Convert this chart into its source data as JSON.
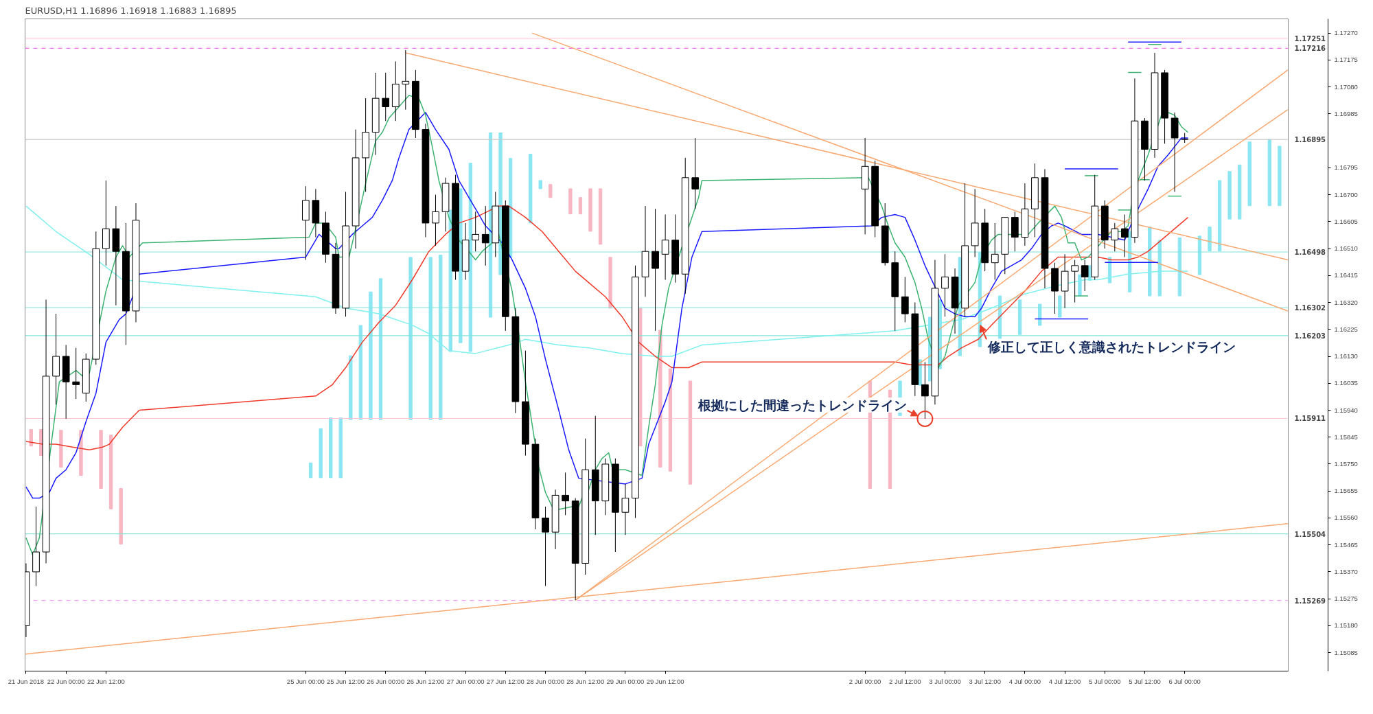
{
  "chart_data": {
    "type": "candlestick",
    "title": "EURUSD,H1  1.16896 1.16918 1.16883 1.16895",
    "x": [
      "2018-06-21T12:00",
      "2018-06-21T15:00",
      "2018-06-21T18:00",
      "2018-06-21T21:00",
      "2018-06-22T00:00",
      "2018-06-22T03:00",
      "2018-06-22T06:00",
      "2018-06-22T09:00",
      "2018-06-22T12:00",
      "2018-06-22T15:00",
      "2018-06-22T18:00",
      "2018-06-22T21:00",
      "2018-06-25T00:00",
      "2018-06-25T03:00",
      "2018-06-25T06:00",
      "2018-06-25T09:00",
      "2018-06-25T12:00",
      "2018-06-25T15:00",
      "2018-06-25T18:00",
      "2018-06-25T21:00",
      "2018-06-26T00:00",
      "2018-06-26T03:00",
      "2018-06-26T06:00",
      "2018-06-26T09:00",
      "2018-06-26T12:00",
      "2018-06-26T15:00",
      "2018-06-26T18:00",
      "2018-06-26T21:00",
      "2018-06-27T00:00",
      "2018-06-27T03:00",
      "2018-06-27T06:00",
      "2018-06-27T09:00",
      "2018-06-27T12:00",
      "2018-06-27T15:00",
      "2018-06-27T18:00",
      "2018-06-27T21:00",
      "2018-06-28T00:00",
      "2018-06-28T03:00",
      "2018-06-28T06:00",
      "2018-06-28T09:00",
      "2018-06-28T12:00",
      "2018-06-28T15:00",
      "2018-06-28T18:00",
      "2018-06-28T21:00",
      "2018-06-29T00:00",
      "2018-06-29T03:00",
      "2018-06-29T06:00",
      "2018-06-29T09:00",
      "2018-06-29T12:00",
      "2018-06-29T15:00",
      "2018-06-29T18:00",
      "2018-06-29T21:00",
      "2018-07-02T00:00",
      "2018-07-02T03:00",
      "2018-07-02T06:00",
      "2018-07-02T09:00",
      "2018-07-02T12:00",
      "2018-07-02T15:00",
      "2018-07-02T18:00",
      "2018-07-02T21:00",
      "2018-07-03T00:00",
      "2018-07-03T03:00",
      "2018-07-03T06:00",
      "2018-07-03T09:00",
      "2018-07-03T12:00",
      "2018-07-03T15:00",
      "2018-07-03T18:00",
      "2018-07-03T21:00",
      "2018-07-04T00:00",
      "2018-07-04T03:00",
      "2018-07-04T06:00",
      "2018-07-04T09:00",
      "2018-07-04T12:00",
      "2018-07-04T15:00",
      "2018-07-04T18:00",
      "2018-07-04T21:00",
      "2018-07-05T00:00",
      "2018-07-05T03:00",
      "2018-07-05T06:00",
      "2018-07-05T09:00",
      "2018-07-05T12:00",
      "2018-07-05T15:00",
      "2018-07-05T18:00",
      "2018-07-05T21:00",
      "2018-07-06T00:00"
    ],
    "ohlc": [
      [
        1.1518,
        1.154,
        1.1514,
        1.1537
      ],
      [
        1.1537,
        1.156,
        1.1532,
        1.1544
      ],
      [
        1.1544,
        1.1633,
        1.154,
        1.1606
      ],
      [
        1.1606,
        1.1628,
        1.1596,
        1.1613
      ],
      [
        1.1613,
        1.1617,
        1.1591,
        1.1604
      ],
      [
        1.1604,
        1.1616,
        1.1598,
        1.1603
      ],
      [
        1.16,
        1.1614,
        1.1597,
        1.1612
      ],
      [
        1.1612,
        1.1657,
        1.161,
        1.1651
      ],
      [
        1.1651,
        1.1675,
        1.1645,
        1.1658
      ],
      [
        1.1658,
        1.1666,
        1.1631,
        1.165
      ],
      [
        1.165,
        1.166,
        1.1617,
        1.1629
      ],
      [
        1.1629,
        1.1667,
        1.1625,
        1.1661
      ],
      [
        1.1661,
        1.1673,
        1.1647,
        1.1668
      ],
      [
        1.1668,
        1.1672,
        1.1655,
        1.166
      ],
      [
        1.166,
        1.1664,
        1.1646,
        1.1649
      ],
      [
        1.1649,
        1.1653,
        1.1628,
        1.163
      ],
      [
        1.163,
        1.1671,
        1.1627,
        1.1659
      ],
      [
        1.1659,
        1.1693,
        1.1651,
        1.1683
      ],
      [
        1.1683,
        1.1704,
        1.1671,
        1.1692
      ],
      [
        1.1692,
        1.1713,
        1.1684,
        1.1704
      ],
      [
        1.1704,
        1.1713,
        1.1696,
        1.1701
      ],
      [
        1.1701,
        1.1717,
        1.1696,
        1.1709
      ],
      [
        1.1709,
        1.1721,
        1.17,
        1.171
      ],
      [
        1.171,
        1.1714,
        1.169,
        1.1693
      ],
      [
        1.1693,
        1.1695,
        1.1655,
        1.166
      ],
      [
        1.166,
        1.167,
        1.1652,
        1.1664
      ],
      [
        1.1664,
        1.1676,
        1.1657,
        1.1674
      ],
      [
        1.1674,
        1.1677,
        1.164,
        1.1643
      ],
      [
        1.1643,
        1.166,
        1.164,
        1.1654
      ],
      [
        1.1654,
        1.1664,
        1.165,
        1.1656
      ],
      [
        1.1656,
        1.1666,
        1.1645,
        1.1653
      ],
      [
        1.1653,
        1.1671,
        1.1648,
        1.1666
      ],
      [
        1.1666,
        1.1668,
        1.1622,
        1.1627
      ],
      [
        1.1627,
        1.163,
        1.1593,
        1.1597
      ],
      [
        1.1597,
        1.1615,
        1.1578,
        1.1582
      ],
      [
        1.1582,
        1.1584,
        1.1552,
        1.1556
      ],
      [
        1.1556,
        1.156,
        1.1532,
        1.1551
      ],
      [
        1.1551,
        1.1566,
        1.1545,
        1.1564
      ],
      [
        1.1564,
        1.1572,
        1.1557,
        1.1562
      ],
      [
        1.1562,
        1.1563,
        1.1527,
        1.154
      ],
      [
        1.154,
        1.1584,
        1.1536,
        1.1573
      ],
      [
        1.1573,
        1.1592,
        1.155,
        1.1562
      ],
      [
        1.1562,
        1.1577,
        1.1557,
        1.1575
      ],
      [
        1.1575,
        1.1577,
        1.1544,
        1.1558
      ],
      [
        1.1558,
        1.1568,
        1.155,
        1.1563
      ],
      [
        1.1563,
        1.1645,
        1.1556,
        1.1641
      ],
      [
        1.1641,
        1.1666,
        1.1634,
        1.165
      ],
      [
        1.165,
        1.1665,
        1.1622,
        1.1644
      ],
      [
        1.1649,
        1.1663,
        1.164,
        1.1654
      ],
      [
        1.1654,
        1.1663,
        1.1639,
        1.1642
      ],
      [
        1.1642,
        1.1683,
        1.1635,
        1.1676
      ],
      [
        1.1676,
        1.169,
        1.1665,
        1.1672
      ],
      [
        1.1672,
        1.169,
        1.1656,
        1.168
      ],
      [
        1.168,
        1.1682,
        1.1655,
        1.1659
      ],
      [
        1.1659,
        1.1667,
        1.1645,
        1.1646
      ],
      [
        1.1646,
        1.165,
        1.1622,
        1.1634
      ],
      [
        1.1634,
        1.1641,
        1.1625,
        1.1628
      ],
      [
        1.1628,
        1.1632,
        1.1599,
        1.1603
      ],
      [
        1.1603,
        1.1611,
        1.1591,
        1.1599
      ],
      [
        1.1599,
        1.1647,
        1.1596,
        1.1637
      ],
      [
        1.1637,
        1.1649,
        1.1627,
        1.1641
      ],
      [
        1.1641,
        1.1644,
        1.1621,
        1.163
      ],
      [
        1.163,
        1.1674,
        1.1627,
        1.1652
      ],
      [
        1.1652,
        1.1672,
        1.1648,
        1.166
      ],
      [
        1.166,
        1.1665,
        1.1643,
        1.1646
      ],
      [
        1.1646,
        1.166,
        1.164,
        1.1649
      ],
      [
        1.1649,
        1.1662,
        1.1642,
        1.1662
      ],
      [
        1.1662,
        1.1664,
        1.165,
        1.1655
      ],
      [
        1.1655,
        1.1674,
        1.1652,
        1.1665
      ],
      [
        1.1665,
        1.1681,
        1.1655,
        1.1676
      ],
      [
        1.1676,
        1.1679,
        1.1637,
        1.1644
      ],
      [
        1.1644,
        1.1646,
        1.1628,
        1.1636
      ],
      [
        1.1636,
        1.1649,
        1.163,
        1.1643
      ],
      [
        1.1643,
        1.1647,
        1.1632,
        1.1645
      ],
      [
        1.1645,
        1.1647,
        1.1636,
        1.1641
      ],
      [
        1.1641,
        1.1677,
        1.164,
        1.1666
      ],
      [
        1.1666,
        1.1668,
        1.1651,
        1.1654
      ],
      [
        1.1654,
        1.166,
        1.165,
        1.1658
      ],
      [
        1.1658,
        1.1663,
        1.1648,
        1.1655
      ],
      [
        1.1655,
        1.1711,
        1.1653,
        1.1696
      ],
      [
        1.1696,
        1.1697,
        1.1675,
        1.1686
      ],
      [
        1.1686,
        1.172,
        1.1683,
        1.1713
      ],
      [
        1.1713,
        1.1714,
        1.1688,
        1.1697
      ],
      [
        1.1697,
        1.1699,
        1.1671,
        1.169
      ],
      [
        1.16896,
        1.16918,
        1.16883,
        1.16895
      ]
    ],
    "series": [
      {
        "type": "bar",
        "x": [
          "2018-06-21T13:30",
          "2018-06-21T16:30",
          "2018-06-21T22:30",
          "2018-06-22T04:30",
          "2018-06-22T10:30",
          "2018-06-22T13:30",
          "2018-06-22T16:30",
          "2018-06-25T01:30",
          "2018-06-25T04:30",
          "2018-06-25T07:30",
          "2018-06-25T10:30",
          "2018-06-25T13:30",
          "2018-06-25T16:30",
          "2018-06-25T19:30",
          "2018-06-25T22:30",
          "2018-06-26T07:30",
          "2018-06-26T13:30",
          "2018-06-26T16:30",
          "2018-06-26T19:30",
          "2018-06-26T22:30",
          "2018-06-27T01:30",
          "2018-06-27T07:30",
          "2018-06-27T10:30",
          "2018-06-27T13:30",
          "2018-06-27T19:30",
          "2018-06-27T22:30",
          "2018-06-28T01:30",
          "2018-06-28T07:30",
          "2018-06-28T10:30",
          "2018-06-28T13:30",
          "2018-06-28T16:30",
          "2018-06-28T19:30",
          "2018-06-29T04:30",
          "2018-06-29T10:30",
          "2018-06-29T13:30",
          "2018-06-29T19:30",
          "2018-07-02T01:30",
          "2018-07-02T07:30",
          "2018-07-02T10:30",
          "2018-07-02T16:30",
          "2018-07-02T19:30",
          "2018-07-02T22:30",
          "2018-07-03T04:30",
          "2018-07-03T10:30",
          "2018-07-03T16:30",
          "2018-07-03T22:30",
          "2018-07-04T04:30",
          "2018-07-04T10:30",
          "2018-07-04T16:30",
          "2018-07-04T19:30",
          "2018-07-05T01:30",
          "2018-07-05T07:30",
          "2018-07-05T13:30",
          "2018-07-05T16:30",
          "2018-07-05T22:30",
          "2018-07-06T04:30",
          "2018-07-06T07:30",
          "2018-07-06T10:30",
          "2018-07-06T13:30",
          "2018-07-06T16:30",
          "2018-07-06T19:30",
          "2018-07-07T01:30",
          "2018-07-07T04:30"
        ],
        "base": [
          1.15814,
          1.1578,
          1.15739,
          1.1571,
          1.15664,
          1.15592,
          1.15468,
          1.15702,
          1.15702,
          1.15702,
          1.15702,
          1.15907,
          1.15907,
          1.15907,
          1.15907,
          1.15907,
          1.15907,
          1.15907,
          1.16147,
          1.16178,
          1.16147,
          1.16268,
          1.16418,
          1.16479,
          1.166,
          1.16721,
          1.1669,
          1.16632,
          1.16632,
          1.16571,
          1.16525,
          1.163,
          1.15814,
          1.15739,
          1.15725,
          1.15679,
          1.15664,
          1.15664,
          1.15921,
          1.16028,
          1.16043,
          1.16086,
          1.16132,
          1.16164,
          1.16193,
          1.16207,
          1.16239,
          1.16268,
          1.16343,
          1.16398,
          1.16389,
          1.16357,
          1.16343,
          1.16343,
          1.16343,
          1.16418,
          1.16502,
          1.16502,
          1.16614,
          1.16614,
          1.16661,
          1.16661,
          1.16661
        ],
        "values": [
          0.00058,
          0.00092,
          0.0013,
          0.00159,
          0.00205,
          0.0026,
          0.00196,
          0.00052,
          0.00173,
          0.00211,
          0.00211,
          0.00225,
          0.00332,
          0.0045,
          0.00497,
          0.00572,
          0.00572,
          0.0058,
          0.00499,
          0.00543,
          0.00664,
          0.0065,
          0.005,
          0.00349,
          0.00243,
          0.00029,
          0.00046,
          0.00089,
          0.00058,
          0.0015,
          0.00196,
          0.00179,
          0.00486,
          0.00483,
          0.00361,
          0.00364,
          0.00379,
          0.00347,
          0.00122,
          0.0009,
          0.00225,
          0.00243,
          0.00347,
          0.00332,
          0.0015,
          0.00122,
          0.00075,
          0.00075,
          0.00075,
          0.00052,
          0.0009,
          0.00214,
          0.00243,
          0.00196,
          0.00205,
          0.00136,
          0.00084,
          0.00248,
          0.00168,
          0.00191,
          0.00225,
          0.00234,
          0.0021
        ],
        "colors": [
          "#f7b6c2",
          "#f7b6c2",
          "#f7b6c2",
          "#f7b6c2",
          "#f7b6c2",
          "#f7b6c2",
          "#f7b6c2",
          "#8be6f2",
          "#8be6f2",
          "#8be6f2",
          "#8be6f2",
          "#8be6f2",
          "#8be6f2",
          "#8be6f2",
          "#8be6f2",
          "#8be6f2",
          "#8be6f2",
          "#8be6f2",
          "#8be6f2",
          "#8be6f2",
          "#8be6f2",
          "#8be6f2",
          "#8be6f2",
          "#8be6f2",
          "#8be6f2",
          "#8be6f2",
          "#f7b6c2",
          "#f7b6c2",
          "#f7b6c2",
          "#f7b6c2",
          "#f7b6c2",
          "#f7b6c2",
          "#f7b6c2",
          "#f7b6c2",
          "#f7b6c2",
          "#f7b6c2",
          "#f7b6c2",
          "#f7b6c2",
          "#8be6f2",
          "#8be6f2",
          "#8be6f2",
          "#8be6f2",
          "#8be6f2",
          "#8be6f2",
          "#8be6f2",
          "#8be6f2",
          "#8be6f2",
          "#8be6f2",
          "#8be6f2",
          "#8be6f2",
          "#8be6f2",
          "#8be6f2",
          "#8be6f2",
          "#8be6f2",
          "#8be6f2",
          "#8be6f2",
          "#8be6f2",
          "#8be6f2",
          "#8be6f2",
          "#8be6f2",
          "#8be6f2",
          "#8be6f2",
          "#8be6f2"
        ]
      },
      {
        "type": "line",
        "color": "#7ff0f0",
        "x": [
          "2018-06-21T12:00",
          "2018-06-21T21:00",
          "2018-06-22T07:00",
          "2018-06-22T17:00",
          "2018-06-25T03:00",
          "2018-06-25T12:00",
          "2018-06-25T22:00",
          "2018-06-26T08:00",
          "2018-06-26T13:00",
          "2018-06-26T19:00",
          "2018-06-27T03:00",
          "2018-06-27T13:00",
          "2018-06-27T18:00",
          "2018-06-28T04:00",
          "2018-06-28T13:00",
          "2018-06-28T23:00",
          "2018-06-29T09:00",
          "2018-06-29T14:00",
          "2018-06-29T23:00",
          "2018-07-02T09:00",
          "2018-07-02T19:00",
          "2018-07-03T05:00",
          "2018-07-03T14:00",
          "2018-07-04T00:00",
          "2018-07-04T10:00",
          "2018-07-04T18:00",
          "2018-07-04T22:00",
          "2018-07-05T07:00",
          "2018-07-05T17:00",
          "2018-07-06T01:00"
        ],
        "values": [
          1.1666,
          1.1657,
          1.1649,
          1.164,
          1.1634,
          1.163,
          1.1628,
          1.1624,
          1.1621,
          1.1615,
          1.1614,
          1.1617,
          1.1619,
          1.1617,
          1.1616,
          1.1614,
          1.1613,
          1.1613,
          1.1617,
          1.1622,
          1.1624,
          1.1626,
          1.163,
          1.1635,
          1.1638,
          1.164,
          1.164,
          1.1642,
          1.1643,
          1.1643
        ]
      },
      {
        "type": "line",
        "color": "#f03a2a",
        "x": [
          "2018-06-21T12:00",
          "2018-06-21T17:00",
          "2018-06-21T21:00",
          "2018-06-22T02:00",
          "2018-06-22T07:00",
          "2018-06-22T11:00",
          "2018-06-22T13:00",
          "2018-06-22T17:00",
          "2018-06-22T22:00",
          "2018-06-25T03:00",
          "2018-06-25T08:00",
          "2018-06-25T12:00",
          "2018-06-25T17:00",
          "2018-06-25T22:00",
          "2018-06-26T03:00",
          "2018-06-26T08:00",
          "2018-06-26T13:00",
          "2018-06-26T18:00",
          "2018-06-26T22:00",
          "2018-06-27T03:00",
          "2018-06-27T10:00",
          "2018-06-27T13:00",
          "2018-06-27T18:00",
          "2018-06-27T23:00",
          "2018-06-28T04:00",
          "2018-06-28T09:00",
          "2018-06-28T13:00",
          "2018-06-28T18:00",
          "2018-06-28T23:00",
          "2018-06-29T04:00",
          "2018-06-29T09:00",
          "2018-06-29T14:00",
          "2018-06-29T19:00",
          "2018-06-29T23:00",
          "2018-07-02T04:00",
          "2018-07-02T09:00",
          "2018-07-02T14:00",
          "2018-07-02T19:00",
          "2018-07-02T22:00",
          "2018-07-03T01:00",
          "2018-07-03T05:00",
          "2018-07-03T10:00",
          "2018-07-03T14:00",
          "2018-07-03T19:00",
          "2018-07-04T00:00",
          "2018-07-04T05:00",
          "2018-07-04T10:00",
          "2018-07-04T14:00",
          "2018-07-04T17:00",
          "2018-07-04T22:00",
          "2018-07-05T02:00",
          "2018-07-05T07:00",
          "2018-07-05T10:00",
          "2018-07-05T13:00",
          "2018-07-05T17:00",
          "2018-07-05T21:00",
          "2018-07-06T01:00"
        ],
        "values": [
          1.1583,
          1.1582,
          1.1582,
          1.1581,
          1.158,
          1.1581,
          1.1582,
          1.1588,
          1.1594,
          1.1599,
          1.1603,
          1.1609,
          1.1618,
          1.1625,
          1.1631,
          1.164,
          1.165,
          1.1656,
          1.166,
          1.1662,
          1.1666,
          1.1666,
          1.1662,
          1.1657,
          1.165,
          1.1643,
          1.1639,
          1.1634,
          1.1627,
          1.1618,
          1.1613,
          1.1609,
          1.1609,
          1.1611,
          1.1611,
          1.1611,
          1.161,
          1.161,
          1.161,
          1.1613,
          1.1616,
          1.1619,
          1.1624,
          1.163,
          1.1636,
          1.1643,
          1.1648,
          1.1648,
          1.1648,
          1.1648,
          1.1647,
          1.1647,
          1.1648,
          1.165,
          1.1654,
          1.1658,
          1.1662
        ]
      },
      {
        "type": "line",
        "color": "#1a1aff",
        "x": [
          "2018-06-21T12:00",
          "2018-06-21T14:00",
          "2018-06-21T16:00",
          "2018-06-21T19:00",
          "2018-06-21T21:00",
          "2018-06-22T00:00",
          "2018-06-22T03:00",
          "2018-06-22T06:00",
          "2018-06-22T09:00",
          "2018-06-22T12:00",
          "2018-06-22T16:00",
          "2018-06-22T18:00",
          "2018-06-22T20:00",
          "2018-06-22T22:00",
          "2018-06-25T00:00",
          "2018-06-25T02:00",
          "2018-06-25T04:00",
          "2018-06-25T09:00",
          "2018-06-25T10:00",
          "2018-06-25T14:00",
          "2018-06-25T17:00",
          "2018-06-25T20:00",
          "2018-06-25T23:00",
          "2018-06-26T02:00",
          "2018-06-26T04:00",
          "2018-06-26T07:00",
          "2018-06-26T12:00",
          "2018-06-26T15:00",
          "2018-06-26T19:00",
          "2018-06-26T22:00",
          "2018-06-27T03:00",
          "2018-06-27T06:00",
          "2018-06-27T11:00",
          "2018-06-27T14:00",
          "2018-06-27T18:00",
          "2018-06-27T21:00",
          "2018-06-28T00:00",
          "2018-06-28T04:00",
          "2018-06-28T07:00",
          "2018-06-28T10:00",
          "2018-06-29T00:00",
          "2018-06-29T05:00",
          "2018-06-29T07:00",
          "2018-06-29T09:00",
          "2018-06-29T12:00",
          "2018-06-29T14:00",
          "2018-06-29T17:00",
          "2018-06-29T20:00",
          "2018-06-29T23:00",
          "2018-07-02T02:00",
          "2018-07-02T05:00",
          "2018-07-02T09:00",
          "2018-07-02T12:00",
          "2018-07-02T15:00",
          "2018-07-02T18:00",
          "2018-07-03T00:00",
          "2018-07-03T03:00",
          "2018-07-03T06:00",
          "2018-07-03T09:00",
          "2018-07-03T11:00",
          "2018-07-03T14:00",
          "2018-07-03T17:00",
          "2018-07-03T20:00",
          "2018-07-03T23:00",
          "2018-07-04T02:00",
          "2018-07-04T05:00",
          "2018-07-04T08:00",
          "2018-07-04T10:00",
          "2018-07-04T12:00",
          "2018-07-04T17:00",
          "2018-07-04T22:00",
          "2018-07-05T02:00",
          "2018-07-05T06:00",
          "2018-07-05T07:00",
          "2018-07-05T10:00",
          "2018-07-05T13:00",
          "2018-07-05T16:00",
          "2018-07-05T19:00",
          "2018-07-05T21:00",
          "2018-07-05T23:00",
          "2018-07-06T01:00"
        ],
        "values": [
          1.1567,
          1.1563,
          1.1563,
          1.1565,
          1.157,
          1.1573,
          1.1579,
          1.159,
          1.16,
          1.1618,
          1.1626,
          1.1628,
          1.1634,
          1.1642,
          1.1648,
          1.1652,
          1.1656,
          1.1651,
          1.1651,
          1.1656,
          1.1659,
          1.1662,
          1.1668,
          1.1675,
          1.1683,
          1.1693,
          1.1699,
          1.1693,
          1.1686,
          1.1675,
          1.1665,
          1.1659,
          1.1653,
          1.1647,
          1.1637,
          1.1627,
          1.1612,
          1.1594,
          1.158,
          1.157,
          1.1568,
          1.157,
          1.1582,
          1.1588,
          1.1597,
          1.1604,
          1.163,
          1.1648,
          1.1657,
          1.1659,
          1.1662,
          1.1663,
          1.1662,
          1.1654,
          1.1645,
          1.163,
          1.1628,
          1.1627,
          1.1627,
          1.163,
          1.1637,
          1.1643,
          1.1645,
          1.1647,
          1.1651,
          1.1656,
          1.1659,
          1.166,
          1.1659,
          1.1656,
          1.1656,
          1.1655,
          1.1654,
          1.1657,
          1.1665,
          1.1672,
          1.168,
          1.1684,
          1.1687,
          1.169,
          1.169
        ]
      },
      {
        "type": "line",
        "color": "#3cb371",
        "x": [
          "2018-06-21T12:00",
          "2018-06-21T14:00",
          "2018-06-21T16:00",
          "2018-06-21T20:00",
          "2018-06-21T22:00",
          "2018-06-22T03:00",
          "2018-06-22T05:00",
          "2018-06-22T07:00",
          "2018-06-22T12:00",
          "2018-06-22T15:00",
          "2018-06-22T17:00",
          "2018-06-22T19:00",
          "2018-06-22T23:00",
          "2018-06-25T01:00",
          "2018-06-25T03:00",
          "2018-06-25T05:00",
          "2018-06-25T07:00",
          "2018-06-25T09:00",
          "2018-06-25T10:00",
          "2018-06-25T13:00",
          "2018-06-25T15:00",
          "2018-06-25T18:00",
          "2018-06-25T21:00",
          "2018-06-25T23:00",
          "2018-06-26T01:00",
          "2018-06-26T04:00",
          "2018-06-26T07:00",
          "2018-06-26T10:00",
          "2018-06-26T12:00",
          "2018-06-26T14:00",
          "2018-06-26T16:00",
          "2018-06-26T19:00",
          "2018-06-26T22:00",
          "2018-06-27T01:00",
          "2018-06-27T03:00",
          "2018-06-27T05:00",
          "2018-06-27T08:00",
          "2018-06-27T10:00",
          "2018-06-27T14:00",
          "2018-06-27T16:00",
          "2018-06-27T18:00",
          "2018-06-27T20:00",
          "2018-06-27T22:00",
          "2018-06-28T00:00",
          "2018-06-28T02:00",
          "2018-06-28T04:00",
          "2018-06-28T08:00",
          "2018-06-28T10:00",
          "2018-06-28T11:00",
          "2018-06-28T13:00",
          "2018-06-28T15:00",
          "2018-06-28T17:00",
          "2018-06-28T19:00",
          "2018-06-28T20:00",
          "2018-06-28T22:00",
          "2018-06-29T00:00",
          "2018-06-29T05:00",
          "2018-06-29T07:00",
          "2018-06-29T09:00",
          "2018-06-29T11:00",
          "2018-06-29T13:00",
          "2018-06-29T16:00",
          "2018-06-29T22:00",
          "2018-06-29T23:00",
          "2018-07-02T01:00",
          "2018-07-02T05:00",
          "2018-07-02T07:00",
          "2018-07-02T09:00",
          "2018-07-02T12:00",
          "2018-07-02T15:00",
          "2018-07-02T17:00",
          "2018-07-02T19:00",
          "2018-07-02T22:00",
          "2018-07-03T00:00",
          "2018-07-03T02:00",
          "2018-07-03T04:00",
          "2018-07-03T09:00",
          "2018-07-03T11:00",
          "2018-07-03T14:00",
          "2018-07-03T16:00",
          "2018-07-03T19:00",
          "2018-07-03T22:00",
          "2018-07-04T01:00",
          "2018-07-04T04:00",
          "2018-07-04T09:00",
          "2018-07-04T11:00",
          "2018-07-04T13:00",
          "2018-07-04T15:00",
          "2018-07-04T17:00",
          "2018-07-04T19:00",
          "2018-07-05T02:00",
          "2018-07-05T05:00",
          "2018-07-05T07:00",
          "2018-07-05T08:00",
          "2018-07-05T10:00",
          "2018-07-05T13:00",
          "2018-07-05T17:00",
          "2018-07-05T19:00",
          "2018-07-05T21:00",
          "2018-07-05T23:00",
          "2018-07-06T01:00"
        ],
        "values": [
          1.1549,
          1.1543,
          1.1549,
          1.1586,
          1.1604,
          1.1608,
          1.1606,
          1.1607,
          1.1636,
          1.1648,
          1.1652,
          1.1648,
          1.1653,
          1.1655,
          1.166,
          1.166,
          1.1658,
          1.1655,
          1.1648,
          1.1648,
          1.1658,
          1.1674,
          1.1689,
          1.1692,
          1.1697,
          1.1701,
          1.1705,
          1.1704,
          1.1698,
          1.1687,
          1.1675,
          1.1662,
          1.1654,
          1.165,
          1.1647,
          1.165,
          1.1653,
          1.1656,
          1.1636,
          1.1621,
          1.1604,
          1.1589,
          1.1574,
          1.1565,
          1.156,
          1.1559,
          1.156,
          1.156,
          1.1563,
          1.1566,
          1.1573,
          1.1577,
          1.1579,
          1.1574,
          1.1573,
          1.1573,
          1.1571,
          1.1588,
          1.1603,
          1.1624,
          1.1637,
          1.1648,
          1.1669,
          1.1675,
          1.1676,
          1.1666,
          1.1659,
          1.1653,
          1.1648,
          1.1639,
          1.163,
          1.1619,
          1.1609,
          1.1613,
          1.1622,
          1.1631,
          1.1639,
          1.1648,
          1.1654,
          1.1656,
          1.1656,
          1.1656,
          1.1656,
          1.166,
          1.1666,
          1.1662,
          1.1653,
          1.1653,
          1.1647,
          1.1648,
          1.1657,
          1.1657,
          1.1659,
          1.1666,
          1.1675,
          1.1684,
          1.1698,
          1.1699,
          1.1698,
          1.1694,
          1.1692
        ]
      },
      {
        "type": "line",
        "color": "#f9a870",
        "x": [
          "2018-06-26T06:00",
          "2018-07-07T07:00"
        ],
        "values": [
          1.172,
          1.1647
        ]
      },
      {
        "type": "line",
        "color": "#f9a870",
        "x": [
          "2018-06-27T20:00",
          "2018-07-07T07:00"
        ],
        "values": [
          1.1727,
          1.1629
        ]
      },
      {
        "type": "line",
        "color": "#f9a870",
        "x": [
          "2018-06-28T09:00",
          "2018-07-07T07:00"
        ],
        "values": [
          1.1527,
          1.1714
        ]
      },
      {
        "type": "line",
        "color": "#f9a870",
        "x": [
          "2018-06-28T09:00",
          "2018-07-07T07:00"
        ],
        "values": [
          1.1527,
          1.17
        ]
      },
      {
        "type": "line",
        "color": "#f9a870",
        "x": [
          "2018-06-21T11:42",
          "2018-07-07T07:00"
        ],
        "values": [
          1.1508,
          1.1554
        ]
      },
      {
        "type": "line",
        "color": "#1a1aff",
        "x": [
          "2018-07-05T07:00",
          "2018-07-05T23:00"
        ],
        "values": [
          1.17238,
          1.17238
        ]
      },
      {
        "type": "line",
        "color": "#1a1aff",
        "x": [
          "2018-07-04T12:00",
          "2018-07-05T04:00"
        ],
        "values": [
          1.16791,
          1.16791
        ]
      },
      {
        "type": "line",
        "color": "#1a1aff",
        "x": [
          "2018-07-04T03:00",
          "2018-07-04T19:00"
        ],
        "values": [
          1.16262,
          1.16262
        ]
      },
      {
        "type": "line",
        "color": "#1a1aff",
        "x": [
          "2018-07-05T00:00",
          "2018-07-05T16:00"
        ],
        "values": [
          1.16461,
          1.16461
        ]
      },
      {
        "type": "line",
        "color": "#3cb371",
        "x": [
          "2018-07-05T07:00",
          "2018-07-05T11:00"
        ],
        "values": [
          1.17131,
          1.17131
        ]
      },
      {
        "type": "line",
        "color": "#3cb371",
        "x": [
          "2018-07-05T13:00",
          "2018-07-05T17:00"
        ],
        "values": [
          1.1723,
          1.1723
        ]
      },
      {
        "type": "line",
        "color": "#3cb371",
        "x": [
          "2018-07-05T04:00",
          "2018-07-05T08:00"
        ],
        "values": [
          1.16646,
          1.16646
        ]
      },
      {
        "type": "line",
        "color": "#3cb371",
        "x": [
          "2018-07-05T10:30",
          "2018-07-05T13:30"
        ],
        "values": [
          1.16753,
          1.16753
        ]
      },
      {
        "type": "line",
        "color": "#3cb371",
        "x": [
          "2018-07-05T19:00",
          "2018-07-05T23:00"
        ],
        "values": [
          1.16695,
          1.16695
        ]
      },
      {
        "type": "line",
        "color": "#3cb371",
        "x": [
          "2018-07-04T18:00",
          "2018-07-04T22:00"
        ],
        "values": [
          1.16767,
          1.16767
        ]
      },
      {
        "type": "line",
        "color": "#3cb371",
        "x": [
          "2018-07-04T15:00",
          "2018-07-04T19:00"
        ],
        "values": [
          1.16343,
          1.16343
        ]
      }
    ],
    "xlim": [
      "2018-06-21T11:42",
      "2018-07-07T07:06"
    ],
    "ylim": [
      1.1502,
      1.1732
    ],
    "xticks": [
      {
        "value": "2018-06-21T12:00",
        "label": "21 Jun 2018"
      },
      {
        "value": "2018-06-22T00:00",
        "label": "22 Jun 00:00"
      },
      {
        "value": "2018-06-22T12:00",
        "label": "22 Jun 12:00"
      },
      {
        "value": "2018-06-25T00:00",
        "label": "25 Jun 00:00"
      },
      {
        "value": "2018-06-25T12:00",
        "label": "25 Jun 12:00"
      },
      {
        "value": "2018-06-26T00:00",
        "label": "26 Jun 00:00"
      },
      {
        "value": "2018-06-26T12:00",
        "label": "26 Jun 12:00"
      },
      {
        "value": "2018-06-27T00:00",
        "label": "27 Jun 00:00"
      },
      {
        "value": "2018-06-27T12:00",
        "label": "27 Jun 12:00"
      },
      {
        "value": "2018-06-28T00:00",
        "label": "28 Jun 00:00"
      },
      {
        "value": "2018-06-28T12:00",
        "label": "28 Jun 12:00"
      },
      {
        "value": "2018-06-29T00:00",
        "label": "29 Jun 00:00"
      },
      {
        "value": "2018-06-29T12:00",
        "label": "29 Jun 12:00"
      },
      {
        "value": "2018-07-02T00:00",
        "label": "2 Jul 00:00"
      },
      {
        "value": "2018-07-02T12:00",
        "label": "2 Jul 12:00"
      },
      {
        "value": "2018-07-03T00:00",
        "label": "3 Jul 00:00"
      },
      {
        "value": "2018-07-03T12:00",
        "label": "3 Jul 12:00"
      },
      {
        "value": "2018-07-04T00:00",
        "label": "4 Jul 00:00"
      },
      {
        "value": "2018-07-04T12:00",
        "label": "4 Jul 12:00"
      },
      {
        "value": "2018-07-05T00:00",
        "label": "5 Jul 00:00"
      },
      {
        "value": "2018-07-05T12:00",
        "label": "5 Jul 12:00"
      },
      {
        "value": "2018-07-06T00:00",
        "label": "6 Jul 00:00"
      }
    ],
    "yticks": [
      {
        "value": 1.15085,
        "label": "1.15085"
      },
      {
        "value": 1.1518,
        "label": "1.15180"
      },
      {
        "value": 1.15275,
        "label": "1.15275"
      },
      {
        "value": 1.1537,
        "label": "1.15370"
      },
      {
        "value": 1.15465,
        "label": "1.15465"
      },
      {
        "value": 1.1556,
        "label": "1.15560"
      },
      {
        "value": 1.15655,
        "label": "1.15655"
      },
      {
        "value": 1.1575,
        "label": "1.15750"
      },
      {
        "value": 1.15845,
        "label": "1.15845"
      },
      {
        "value": 1.1594,
        "label": "1.15940"
      },
      {
        "value": 1.16035,
        "label": "1.16035"
      },
      {
        "value": 1.1613,
        "label": "1.16130"
      },
      {
        "value": 1.16225,
        "label": "1.16225"
      },
      {
        "value": 1.1632,
        "label": "1.16320"
      },
      {
        "value": 1.16415,
        "label": "1.16415"
      },
      {
        "value": 1.1651,
        "label": "1.16510"
      },
      {
        "value": 1.16605,
        "label": "1.16605"
      },
      {
        "value": 1.167,
        "label": "1.16700"
      },
      {
        "value": 1.16795,
        "label": "1.16795"
      },
      {
        "value": 1.16985,
        "label": "1.16985"
      },
      {
        "value": 1.1708,
        "label": "1.17080"
      },
      {
        "value": 1.17175,
        "label": "1.17175"
      },
      {
        "value": 1.1727,
        "label": "1.17270"
      }
    ],
    "ref_lines": [
      {
        "axis": "y",
        "value": 1.17251,
        "label": "1.17251",
        "color": "#ffc4d0"
      },
      {
        "axis": "y",
        "value": 1.17216,
        "label": "1.17216",
        "color": "#f070f0",
        "line_style": "dashed"
      },
      {
        "axis": "y",
        "value": 1.16895,
        "label": "1.16895",
        "color": "#c8c8c8"
      },
      {
        "axis": "y",
        "value": 1.16498,
        "label": "1.16498",
        "color": "#7fe3d8"
      },
      {
        "axis": "y",
        "value": 1.16302,
        "label": "1.16302",
        "color": "#7fe3d8"
      },
      {
        "axis": "y",
        "value": 1.16203,
        "label": "1.16203",
        "color": "#7fe3d8"
      },
      {
        "axis": "y",
        "value": 1.15911,
        "label": "1.15911",
        "color": "#ffc4d0"
      },
      {
        "axis": "y",
        "value": 1.15504,
        "label": "1.15504",
        "color": "#7fe3d8"
      },
      {
        "axis": "y",
        "value": 1.15269,
        "label": "1.15269",
        "color": "#f0a0f0",
        "line_style": "dashed"
      }
    ],
    "annotations": [
      {
        "text": "根拠にした間違ったトレンドライン",
        "x": "2018-07-02T18:00",
        "y": 1.1591
      },
      {
        "text": "修正して正しく意識されたトレンドライン",
        "x": "2018-07-03T10:00",
        "y": 1.1625
      }
    ],
    "grid": false
  }
}
